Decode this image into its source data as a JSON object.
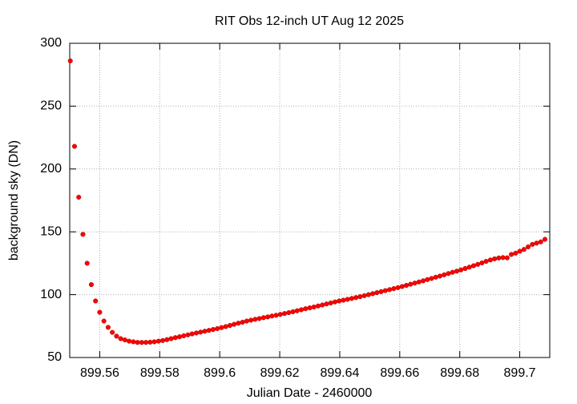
{
  "chart_data": {
    "type": "scatter",
    "title": "RIT Obs 12-inch UT Aug 12 2025",
    "x_label": "Julian Date - 2460000",
    "y_label": "background sky (DN)",
    "color": "#ff0000",
    "grid": true,
    "xlim": [
      899.55,
      899.71
    ],
    "ylim": [
      50,
      300
    ],
    "xticks": [
      899.56,
      899.58,
      899.6,
      899.62,
      899.64,
      899.66,
      899.68,
      899.7
    ],
    "yticks": [
      50,
      100,
      150,
      200,
      250,
      300
    ],
    "x": [
      899.5502,
      899.5516,
      899.553,
      899.5544,
      899.5558,
      899.5572,
      899.5586,
      899.56,
      899.5614,
      899.5628,
      899.5642,
      899.5656,
      899.567,
      899.5684,
      899.5698,
      899.5712,
      899.5726,
      899.574,
      899.5754,
      899.5768,
      899.5782,
      899.5796,
      899.581,
      899.5824,
      899.5838,
      899.5852,
      899.5866,
      899.588,
      899.5894,
      899.5908,
      899.5922,
      899.5936,
      899.595,
      899.5964,
      899.5978,
      899.5992,
      899.6006,
      899.602,
      899.6034,
      899.6048,
      899.6062,
      899.6076,
      899.609,
      899.6104,
      899.6118,
      899.6132,
      899.6146,
      899.616,
      899.6174,
      899.6188,
      899.6202,
      899.6216,
      899.623,
      899.6244,
      899.6258,
      899.6272,
      899.6286,
      899.63,
      899.6314,
      899.6328,
      899.6342,
      899.6356,
      899.637,
      899.6384,
      899.6398,
      899.6412,
      899.6426,
      899.644,
      899.6454,
      899.6468,
      899.6482,
      899.6496,
      899.651,
      899.6524,
      899.6538,
      899.6552,
      899.6566,
      899.658,
      899.6594,
      899.6608,
      899.6622,
      899.6636,
      899.665,
      899.6664,
      899.6678,
      899.6692,
      899.6706,
      899.672,
      899.6734,
      899.6748,
      899.6762,
      899.6776,
      899.679,
      899.6804,
      899.6818,
      899.6832,
      899.6846,
      899.686,
      899.6874,
      899.6888,
      899.6902,
      899.6916,
      899.693,
      899.6944,
      899.6958,
      899.6972,
      899.6986,
      899.7,
      899.7014,
      899.7028,
      899.7042,
      899.7056,
      899.707,
      899.7084
    ],
    "values": [
      286,
      218,
      177.5,
      148,
      125,
      108,
      95,
      86,
      79,
      74,
      70,
      67,
      65,
      64,
      63,
      62.5,
      62,
      62,
      62,
      62.2,
      62.5,
      63,
      63.5,
      64.2,
      65,
      65.8,
      66.5,
      67.3,
      68,
      68.8,
      69.5,
      70.2,
      70.9,
      71.6,
      72.3,
      73,
      73.8,
      74.6,
      75.5,
      76.4,
      77.3,
      78.1,
      79,
      79.7,
      80.4,
      81,
      81.7,
      82.3,
      83,
      83.6,
      84.3,
      85,
      85.7,
      86.4,
      87.2,
      88,
      88.8,
      89.5,
      90.2,
      91,
      91.8,
      92.6,
      93.4,
      94.2,
      95,
      95.6,
      96.3,
      97,
      97.7,
      98.4,
      99.2,
      100,
      100.8,
      101.6,
      102.4,
      103.2,
      104,
      104.8,
      105.6,
      106.5,
      107.4,
      108.3,
      109.2,
      110.1,
      111,
      112,
      112.9,
      113.9,
      114.8,
      115.8,
      116.8,
      117.8,
      118.7,
      119.7,
      120.8,
      121.9,
      123,
      124.1,
      125.3,
      126.5,
      127.6,
      128.5,
      129.2,
      129.5,
      129.3,
      132,
      133,
      134.5,
      136,
      138,
      140,
      141,
      142,
      144
    ]
  }
}
